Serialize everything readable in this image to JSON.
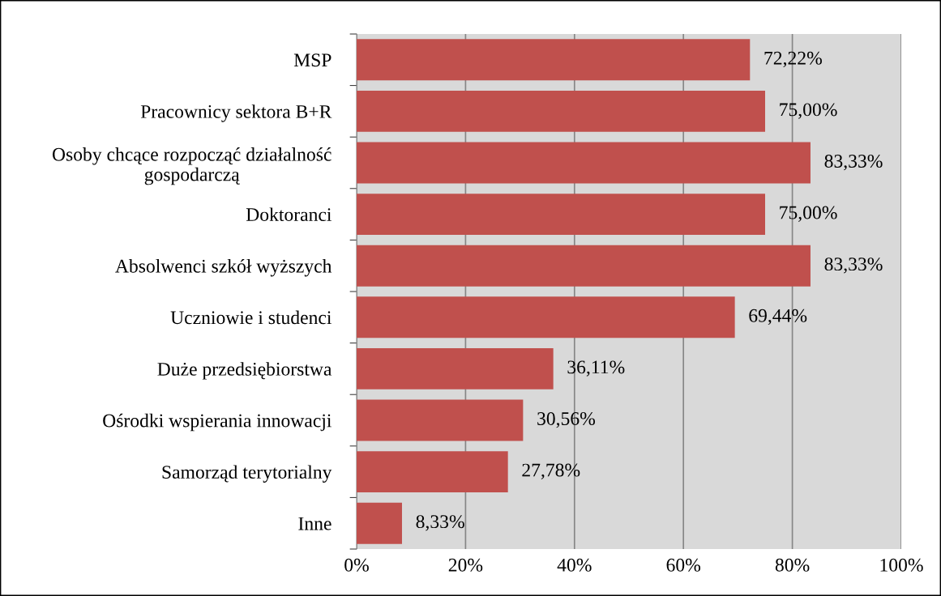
{
  "chart_data": {
    "type": "bar",
    "orientation": "horizontal",
    "categories": [
      "MSP",
      "Pracownicy sektora B+R",
      "Osoby chcące rozpocząć działalność\ngospodarczą",
      "Doktoranci",
      "Absolwenci szkół wyższych",
      "Uczniowie i studenci",
      "Duże przedsiębiorstwa",
      "Ośrodki wspierania innowacji",
      "Samorząd terytorialny",
      "Inne"
    ],
    "values": [
      72.22,
      75.0,
      83.33,
      75.0,
      83.33,
      69.44,
      36.11,
      30.56,
      27.78,
      8.33
    ],
    "value_labels": [
      "72,22%",
      "75,00%",
      "83,33%",
      "75,00%",
      "83,33%",
      "69,44%",
      "36,11%",
      "30,56%",
      "27,78%",
      "8,33%"
    ],
    "color": "#c0504d",
    "xlim": [
      0,
      100
    ],
    "xticks": [
      {
        "value": 0,
        "label": "0%"
      },
      {
        "value": 20,
        "label": "20%"
      },
      {
        "value": 40,
        "label": "40%"
      },
      {
        "value": 60,
        "label": "60%"
      },
      {
        "value": 80,
        "label": "80%"
      },
      {
        "value": 100,
        "label": "100%"
      }
    ],
    "grid": "x"
  }
}
